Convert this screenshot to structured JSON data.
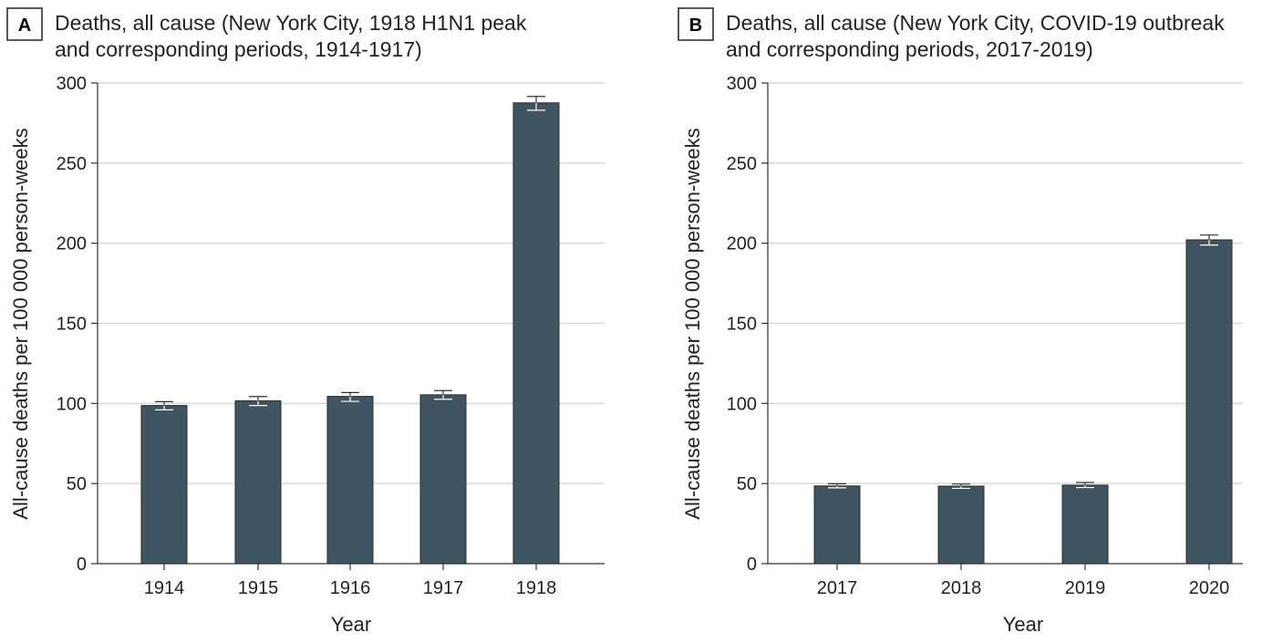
{
  "chart_data": [
    {
      "type": "bar",
      "panel": "A",
      "title_lines": [
        "Deaths, all cause  (New York City, 1918 H1N1 peak",
        "and corresponding periods, 1914-1917)"
      ],
      "xlabel": "Year",
      "ylabel": "All-cause deaths per 100 000 person-weeks",
      "ylim": [
        0,
        300
      ],
      "yticks": [
        0,
        50,
        100,
        150,
        200,
        250,
        300
      ],
      "grid": true,
      "categories": [
        "1914",
        "1915",
        "1916",
        "1917",
        "1918"
      ],
      "values": [
        98.7,
        101.6,
        104.4,
        105.4,
        287.6
      ],
      "error_low": [
        96.0,
        98.7,
        101.3,
        102.6,
        283.0
      ],
      "error_high": [
        101.1,
        104.3,
        106.8,
        108.0,
        291.6
      ],
      "bar_color": "#3f5562"
    },
    {
      "type": "bar",
      "panel": "B",
      "title_lines": [
        "Deaths, all cause (New York City, COVID-19 outbreak",
        "and corresponding periods, 2017-2019)"
      ],
      "xlabel": "Year",
      "ylabel": "All-cause deaths per 100 000 person-weeks",
      "ylim": [
        0,
        300
      ],
      "yticks": [
        0,
        50,
        100,
        150,
        200,
        250,
        300
      ],
      "grid": true,
      "categories": [
        "2017",
        "2018",
        "2019",
        "2020"
      ],
      "values": [
        48.5,
        48.4,
        49.0,
        202.1
      ],
      "error_low": [
        47.3,
        47.0,
        47.5,
        198.9
      ],
      "error_high": [
        49.9,
        49.7,
        50.7,
        205.1
      ],
      "bar_color": "#3f5562"
    }
  ]
}
